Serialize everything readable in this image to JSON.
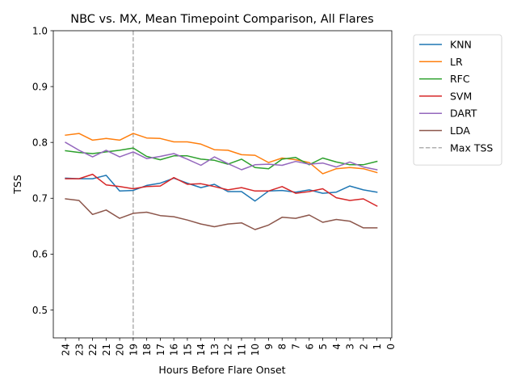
{
  "chart_data": {
    "type": "line",
    "title": "NBC vs. MX, Mean Timepoint Comparison, All Flares",
    "xlabel": "Hours Before Flare Onset",
    "ylabel": "TSS",
    "xlim": [
      24.9,
      -0.1
    ],
    "ylim": [
      0.45,
      1.0
    ],
    "x_ticks": [
      24,
      23,
      22,
      21,
      20,
      19,
      18,
      17,
      16,
      15,
      14,
      13,
      12,
      11,
      10,
      9,
      8,
      7,
      6,
      5,
      4,
      3,
      2,
      1,
      0
    ],
    "y_ticks": [
      0.5,
      0.6,
      0.7,
      0.8,
      0.9,
      1.0
    ],
    "y_tick_labels": [
      "0.5",
      "0.6",
      "0.7",
      "0.8",
      "0.9",
      "1.0"
    ],
    "x": [
      24,
      23,
      22,
      21,
      20,
      19,
      18,
      17,
      16,
      15,
      14,
      13,
      12,
      11,
      10,
      9,
      8,
      7,
      6,
      5,
      4,
      3,
      2,
      1
    ],
    "series": [
      {
        "name": "KNN",
        "color": "#1f77b4",
        "values": [
          0.736,
          0.735,
          0.735,
          0.741,
          0.713,
          0.714,
          0.723,
          0.727,
          0.736,
          0.727,
          0.719,
          0.725,
          0.712,
          0.712,
          0.695,
          0.713,
          0.714,
          0.711,
          0.715,
          0.709,
          0.711,
          0.722,
          0.715,
          0.711
        ]
      },
      {
        "name": "LR",
        "color": "#ff7f0e",
        "values": [
          0.813,
          0.816,
          0.804,
          0.807,
          0.804,
          0.816,
          0.808,
          0.807,
          0.801,
          0.801,
          0.797,
          0.787,
          0.786,
          0.778,
          0.777,
          0.764,
          0.772,
          0.769,
          0.764,
          0.744,
          0.753,
          0.755,
          0.753,
          0.746
        ]
      },
      {
        "name": "RFC",
        "color": "#2ca02c",
        "values": [
          0.785,
          0.782,
          0.78,
          0.783,
          0.786,
          0.79,
          0.775,
          0.769,
          0.776,
          0.776,
          0.77,
          0.768,
          0.761,
          0.77,
          0.755,
          0.753,
          0.77,
          0.773,
          0.76,
          0.772,
          0.765,
          0.76,
          0.76,
          0.766
        ]
      },
      {
        "name": "SVM",
        "color": "#d62728",
        "values": [
          0.735,
          0.735,
          0.743,
          0.724,
          0.721,
          0.717,
          0.721,
          0.722,
          0.737,
          0.725,
          0.726,
          0.721,
          0.715,
          0.719,
          0.713,
          0.713,
          0.721,
          0.709,
          0.712,
          0.717,
          0.701,
          0.696,
          0.699,
          0.686
        ]
      },
      {
        "name": "DART",
        "color": "#9467bd",
        "values": [
          0.8,
          0.786,
          0.774,
          0.786,
          0.774,
          0.783,
          0.771,
          0.775,
          0.78,
          0.77,
          0.759,
          0.774,
          0.762,
          0.751,
          0.76,
          0.761,
          0.759,
          0.766,
          0.761,
          0.763,
          0.756,
          0.765,
          0.756,
          0.751
        ]
      },
      {
        "name": "LDA",
        "color": "#8c564b",
        "values": [
          0.699,
          0.696,
          0.671,
          0.679,
          0.664,
          0.673,
          0.675,
          0.669,
          0.667,
          0.661,
          0.654,
          0.649,
          0.654,
          0.656,
          0.644,
          0.652,
          0.666,
          0.664,
          0.67,
          0.657,
          0.662,
          0.659,
          0.647,
          0.647
        ]
      }
    ],
    "reference_lines": [
      {
        "name": "Max TSS",
        "orientation": "vertical",
        "x": 19,
        "color": "#b0b0b0",
        "style": "dashed"
      }
    ],
    "grid": false,
    "legend_position": "outside-right-top"
  }
}
